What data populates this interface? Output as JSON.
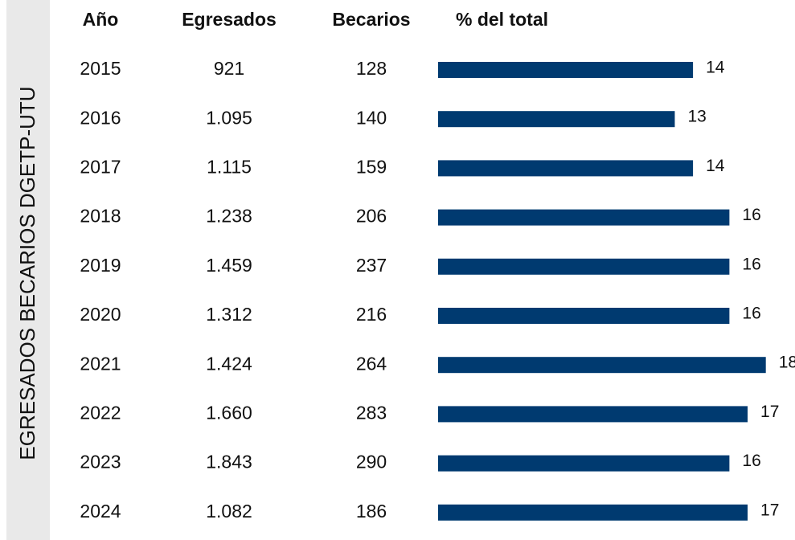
{
  "chart_data": {
    "type": "bar",
    "orientation": "horizontal",
    "title": "EGRESADOS BECARIOS DGETP-UTU",
    "columns": [
      "Año",
      "Egresados",
      "Becarios",
      "% del total"
    ],
    "categories": [
      "2015",
      "2016",
      "2017",
      "2018",
      "2019",
      "2020",
      "2021",
      "2022",
      "2023",
      "2024"
    ],
    "egresados": [
      "921",
      "1.095",
      "1.115",
      "1.238",
      "1.459",
      "1.312",
      "1.424",
      "1.660",
      "1.843",
      "1.082"
    ],
    "becarios": [
      128,
      140,
      159,
      206,
      237,
      216,
      264,
      283,
      290,
      186
    ],
    "values": [
      14,
      13,
      14,
      16,
      16,
      16,
      18,
      17,
      16,
      17
    ],
    "color": "#003a70"
  }
}
